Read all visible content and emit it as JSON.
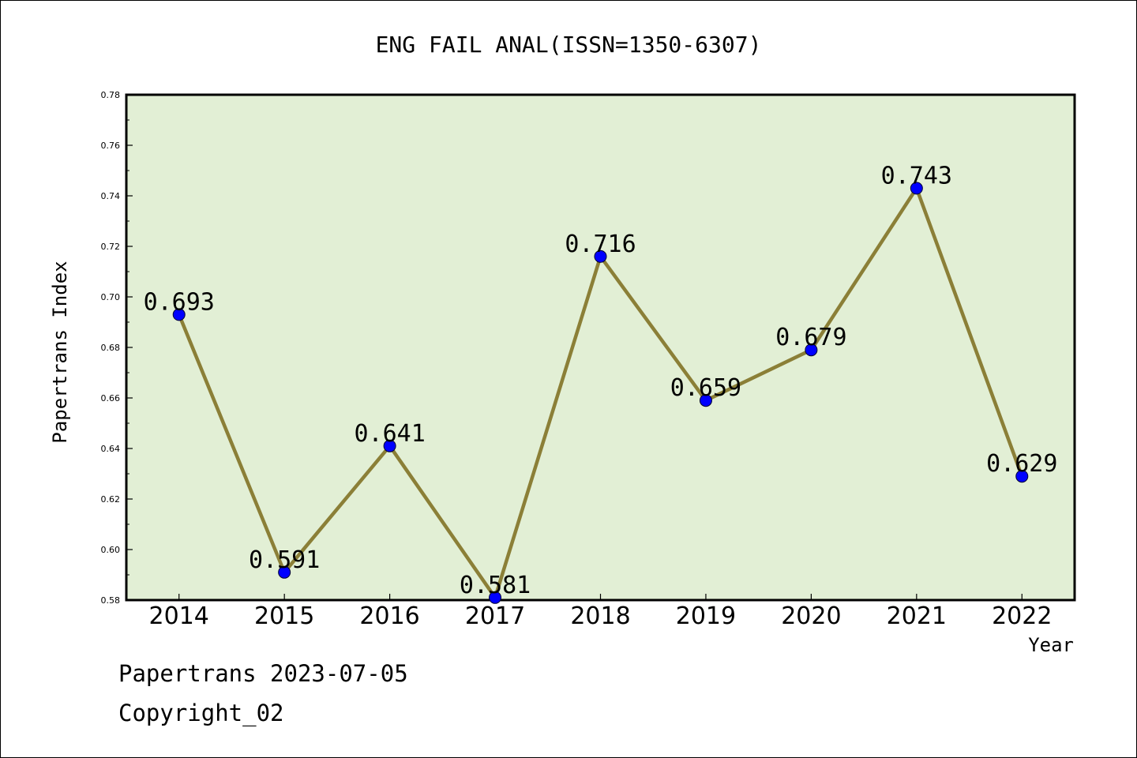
{
  "chart_data": {
    "type": "line",
    "title": "ENG FAIL ANAL(ISSN=1350-6307)",
    "xlabel": "Year",
    "ylabel": "Papertrans Index",
    "categories": [
      "2014",
      "2015",
      "2016",
      "2017",
      "2018",
      "2019",
      "2020",
      "2021",
      "2022"
    ],
    "values": [
      0.693,
      0.591,
      0.641,
      0.581,
      0.716,
      0.659,
      0.679,
      0.743,
      0.629
    ],
    "data_labels": [
      "0.693",
      "0.591",
      "0.641",
      "0.581",
      "0.716",
      "0.659",
      "0.679",
      "0.743",
      "0.629"
    ],
    "ylim": [
      0.58,
      0.78
    ],
    "yticks": [
      0.58,
      0.6,
      0.62,
      0.64,
      0.66,
      0.68,
      0.7,
      0.72,
      0.74,
      0.76,
      0.78
    ],
    "ytick_labels": [
      "0.58",
      "0.60",
      "0.62",
      "0.64",
      "0.66",
      "0.68",
      "0.70",
      "0.72",
      "0.74",
      "0.76",
      "0.78"
    ],
    "grid": false,
    "colors": {
      "plot_background": "#e2efd5",
      "line": "#8b7f37",
      "marker": "#0000ff"
    }
  },
  "footer": {
    "line1": "Papertrans 2023-07-05",
    "line2": "Copyright_02"
  }
}
